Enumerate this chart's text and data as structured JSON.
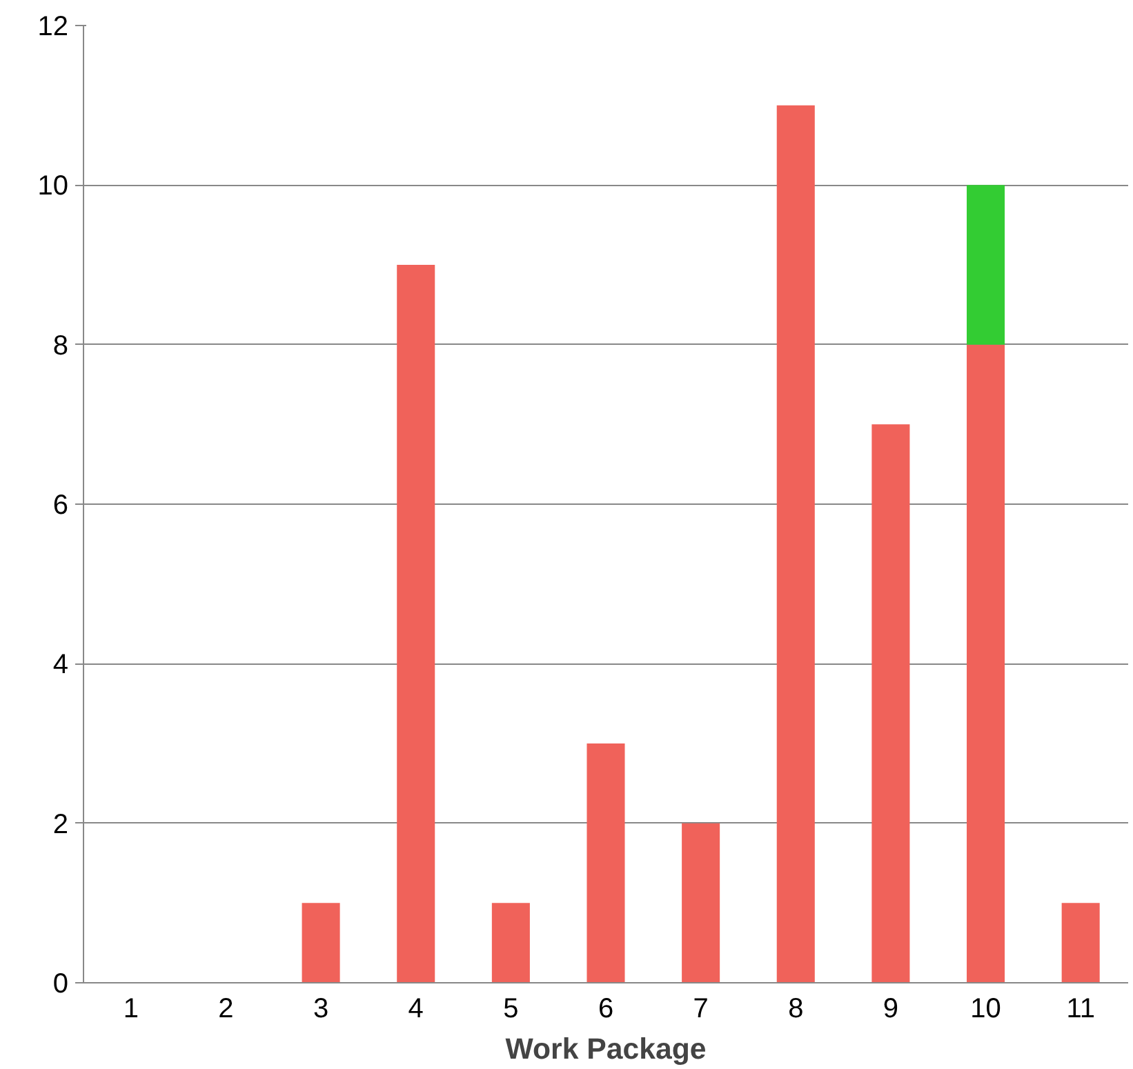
{
  "chart_data": {
    "type": "bar",
    "xlabel": "Work Package",
    "categories": [
      "1",
      "2",
      "3",
      "4",
      "5",
      "6",
      "7",
      "8",
      "9",
      "10",
      "11"
    ],
    "series": [
      {
        "color": "#f0625a",
        "values": [
          0,
          0,
          1,
          9,
          1,
          3,
          2,
          11,
          7,
          8,
          1
        ]
      },
      {
        "color": "#33cc33",
        "values": [
          null,
          null,
          null,
          null,
          null,
          null,
          null,
          null,
          null,
          2,
          null
        ]
      }
    ],
    "stacked": true,
    "ylim": [
      0,
      12
    ],
    "yticks": [
      0,
      2,
      4,
      6,
      8,
      10,
      12
    ],
    "grid": "y"
  }
}
